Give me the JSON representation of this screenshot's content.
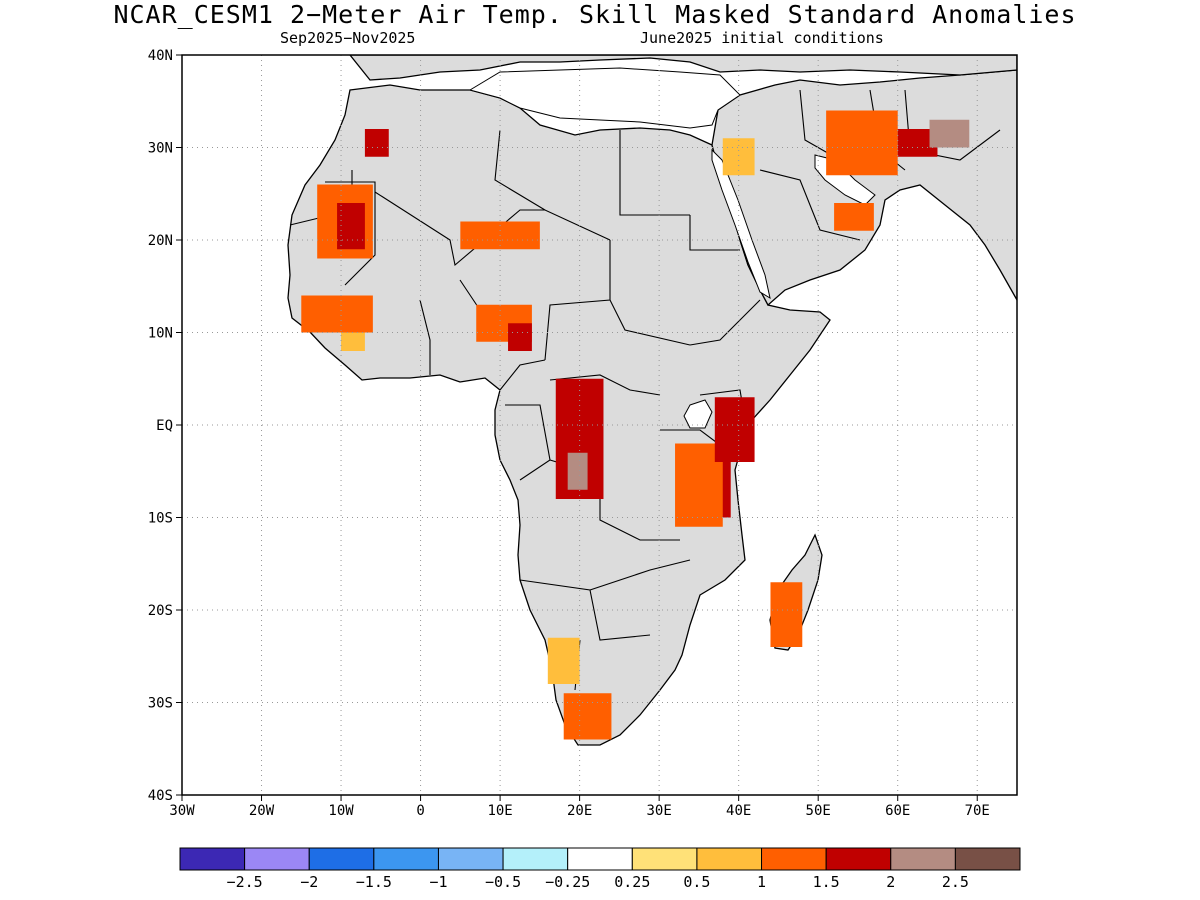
{
  "title": "NCAR_CESM1 2−Meter Air Temp. Skill Masked Standard Anomalies",
  "subtitle_left": "Sep2025−Nov2025",
  "subtitle_right": "June2025 initial conditions",
  "map": {
    "lon_range": [
      -30,
      75
    ],
    "lat_range": [
      -40,
      40
    ],
    "land_color": "#dcdcdc",
    "ocean_color": "#ffffff",
    "lat_ticks": [
      {
        "value": 40,
        "label": "40N"
      },
      {
        "value": 30,
        "label": "30N"
      },
      {
        "value": 20,
        "label": "20N"
      },
      {
        "value": 10,
        "label": "10N"
      },
      {
        "value": 0,
        "label": "EQ"
      },
      {
        "value": -10,
        "label": "10S"
      },
      {
        "value": -20,
        "label": "20S"
      },
      {
        "value": -30,
        "label": "30S"
      },
      {
        "value": -40,
        "label": "40S"
      }
    ],
    "lon_ticks": [
      {
        "value": -30,
        "label": "30W"
      },
      {
        "value": -20,
        "label": "20W"
      },
      {
        "value": -10,
        "label": "10W"
      },
      {
        "value": 0,
        "label": "0"
      },
      {
        "value": 10,
        "label": "10E"
      },
      {
        "value": 20,
        "label": "20E"
      },
      {
        "value": 30,
        "label": "30E"
      },
      {
        "value": 40,
        "label": "40E"
      },
      {
        "value": 50,
        "label": "50E"
      },
      {
        "value": 60,
        "label": "60E"
      },
      {
        "value": 70,
        "label": "70E"
      }
    ],
    "anomaly_regions": [
      {
        "name": "mauritania",
        "lon": [
          -13,
          -6
        ],
        "lat": [
          18,
          26
        ],
        "level": 1.5
      },
      {
        "name": "mauritania-core",
        "lon": [
          -10.5,
          -7
        ],
        "lat": [
          19,
          24
        ],
        "level": 2
      },
      {
        "name": "west-africa-coast",
        "lon": [
          -15,
          -6
        ],
        "lat": [
          10,
          14
        ],
        "level": 1.5
      },
      {
        "name": "guinea",
        "lon": [
          -10,
          -7
        ],
        "lat": [
          8,
          10
        ],
        "level": 1
      },
      {
        "name": "nigeria-cameroon",
        "lon": [
          7,
          14
        ],
        "lat": [
          9,
          13
        ],
        "level": 1.5
      },
      {
        "name": "cameroon-core",
        "lon": [
          11,
          14
        ],
        "lat": [
          8,
          11
        ],
        "level": 2
      },
      {
        "name": "chad",
        "lon": [
          5,
          15
        ],
        "lat": [
          19,
          22
        ],
        "level": 1.5
      },
      {
        "name": "congo",
        "lon": [
          17,
          23
        ],
        "lat": [
          -8,
          5
        ],
        "level": 2
      },
      {
        "name": "congo-brown",
        "lon": [
          18.5,
          21
        ],
        "lat": [
          -7,
          -3
        ],
        "level": 2.5
      },
      {
        "name": "tanzania",
        "lon": [
          34,
          39
        ],
        "lat": [
          -10,
          -3
        ],
        "level": 2
      },
      {
        "name": "tanzania-edge",
        "lon": [
          32,
          38
        ],
        "lat": [
          -11,
          -2
        ],
        "level": 1.5
      },
      {
        "name": "kenya",
        "lon": [
          37,
          42
        ],
        "lat": [
          -4,
          3
        ],
        "level": 2
      },
      {
        "name": "madagascar",
        "lon": [
          44,
          48
        ],
        "lat": [
          -24,
          -17
        ],
        "level": 1.5
      },
      {
        "name": "namibia",
        "lon": [
          16,
          20
        ],
        "lat": [
          -28,
          -23
        ],
        "level": 1
      },
      {
        "name": "south-africa",
        "lon": [
          18,
          24
        ],
        "lat": [
          -34,
          -29
        ],
        "level": 1.5
      },
      {
        "name": "iran",
        "lon": [
          51,
          60
        ],
        "lat": [
          27,
          34
        ],
        "level": 1.5
      },
      {
        "name": "afghanistan",
        "lon": [
          60,
          65
        ],
        "lat": [
          29,
          32
        ],
        "level": 2
      },
      {
        "name": "pakistan",
        "lon": [
          64,
          69
        ],
        "lat": [
          30,
          33
        ],
        "level": 2.5
      },
      {
        "name": "oman",
        "lon": [
          52,
          57
        ],
        "lat": [
          21,
          24
        ],
        "level": 1.5
      },
      {
        "name": "saudi-north",
        "lon": [
          38,
          42
        ],
        "lat": [
          27,
          31
        ],
        "level": 1
      },
      {
        "name": "morocco",
        "lon": [
          -7,
          -4
        ],
        "lat": [
          29,
          32
        ],
        "level": 2
      }
    ]
  },
  "colorbar": {
    "colors": [
      "#3c28b4",
      "#9b87f5",
      "#1e6ee6",
      "#3c96f0",
      "#78b4f5",
      "#b4f0fa",
      "#ffffff",
      "#ffe178",
      "#ffbe3c",
      "#ff5f00",
      "#c00000",
      "#b48c82",
      "#785046"
    ],
    "labels": [
      "−2.5",
      "−2",
      "−1.5",
      "−1",
      "−0.5",
      "−0.25",
      "0.25",
      "0.5",
      "1",
      "1.5",
      "2",
      "2.5"
    ],
    "level_colors": {
      "1": "#ffbe3c",
      "1.5": "#ff5f00",
      "2": "#c00000",
      "2.5": "#b48c82"
    }
  }
}
